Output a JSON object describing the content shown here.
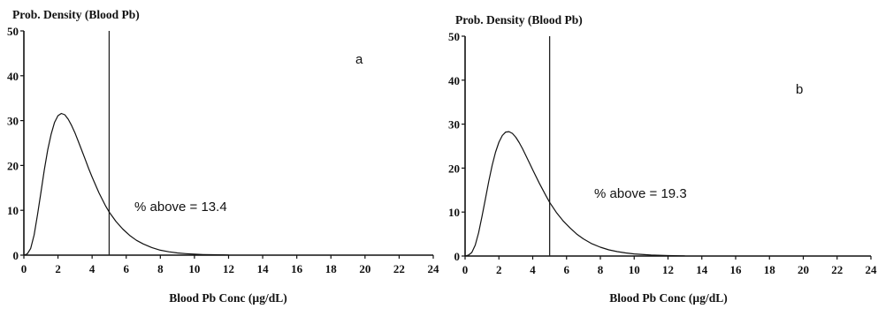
{
  "chart_data": [
    {
      "type": "line",
      "panel_label": "a",
      "ylabel": "Prob. Density (Blood Pb)",
      "xlabel": "Blood Pb Conc (µg/dL)",
      "xlim": [
        0,
        24
      ],
      "ylim": [
        0,
        50
      ],
      "xticks": [
        0,
        2,
        4,
        6,
        8,
        10,
        12,
        14,
        16,
        18,
        20,
        22,
        24
      ],
      "yticks": [
        0,
        10,
        20,
        30,
        40,
        50
      ],
      "vline_x": 5,
      "annotation": "% above = 13.4",
      "series": [
        {
          "x": [
            0.2,
            0.4,
            0.6,
            0.8,
            1.0,
            1.2,
            1.4,
            1.6,
            1.8,
            2.0,
            2.2,
            2.4,
            2.6,
            2.8,
            3.0,
            3.2,
            3.4,
            3.6,
            3.8,
            4.0,
            4.4,
            4.8,
            5.0,
            5.4,
            5.8,
            6.2,
            6.6,
            7.0,
            7.5,
            8.0,
            8.5,
            9.0,
            9.5,
            10.0,
            10.5,
            11.0,
            12.0
          ],
          "y": [
            0.3,
            1.5,
            4.5,
            9.0,
            14.0,
            19.0,
            23.5,
            27.0,
            29.6,
            31.1,
            31.6,
            31.3,
            30.3,
            28.9,
            27.2,
            25.3,
            23.3,
            21.3,
            19.3,
            17.4,
            13.9,
            10.9,
            9.6,
            7.5,
            5.8,
            4.4,
            3.3,
            2.5,
            1.7,
            1.1,
            0.75,
            0.5,
            0.33,
            0.22,
            0.14,
            0.09,
            0.04
          ]
        }
      ]
    },
    {
      "type": "line",
      "panel_label": "b",
      "ylabel": "Prob. Density (Blood Pb)",
      "xlabel": "Blood Pb Conc (µg/dL)",
      "xlim": [
        0,
        24
      ],
      "ylim": [
        0,
        50
      ],
      "xticks": [
        0,
        2,
        4,
        6,
        8,
        10,
        12,
        14,
        16,
        18,
        20,
        22,
        24
      ],
      "yticks": [
        0,
        10,
        20,
        30,
        40,
        50
      ],
      "vline_x": 5,
      "annotation": "% above = 19.3",
      "series": [
        {
          "x": [
            0.2,
            0.4,
            0.6,
            0.8,
            1.0,
            1.2,
            1.4,
            1.6,
            1.8,
            2.0,
            2.2,
            2.4,
            2.6,
            2.8,
            3.0,
            3.2,
            3.4,
            3.6,
            3.8,
            4.0,
            4.4,
            4.8,
            5.0,
            5.4,
            5.8,
            6.2,
            6.6,
            7.0,
            7.5,
            8.0,
            8.5,
            9.0,
            9.5,
            10.0,
            11.0,
            12.0,
            13.0
          ],
          "y": [
            0.2,
            0.8,
            2.5,
            5.3,
            9.0,
            13.0,
            17.0,
            20.6,
            23.6,
            25.9,
            27.4,
            28.2,
            28.3,
            27.9,
            27.0,
            25.8,
            24.4,
            22.8,
            21.2,
            19.6,
            16.5,
            13.6,
            12.2,
            9.9,
            8.0,
            6.4,
            5.0,
            3.9,
            2.8,
            2.0,
            1.4,
            1.0,
            0.7,
            0.48,
            0.22,
            0.1,
            0.04
          ]
        }
      ]
    }
  ]
}
